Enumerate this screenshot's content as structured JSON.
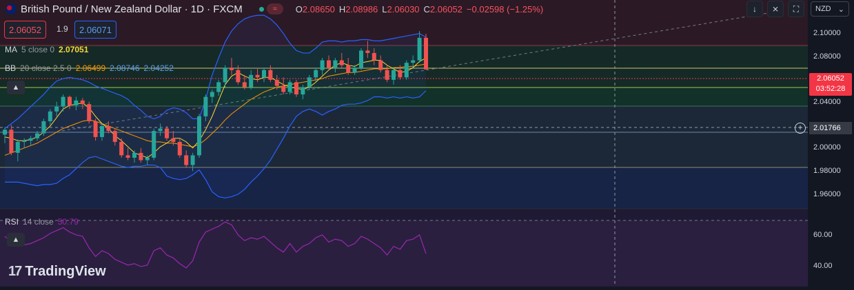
{
  "header": {
    "symbol": "British Pound / New Zealand Dollar · 1D · FXCM",
    "open_label": "O",
    "open": "2.08650",
    "high_label": "H",
    "high": "2.08986",
    "low_label": "L",
    "low": "2.06030",
    "close_label": "C",
    "close": "2.06052",
    "change": "−0.02598 (−1.25%)",
    "wave_icon": "≈"
  },
  "trade": {
    "sell": "2.06052",
    "spread": "1.9",
    "buy": "2.06071"
  },
  "indicators": {
    "ma": {
      "name": "MA",
      "params": "5 close 0",
      "value": "2.07051",
      "color": "#fdd835"
    },
    "bb": {
      "name": "BB",
      "params": "20 close 2.5 0",
      "basis": "2.06499",
      "upper": "2.08746",
      "lower": "2.04252",
      "basis_color": "#ff9800",
      "band_color": "#2962ff"
    },
    "rsi": {
      "name": "RSI",
      "params": "14 close",
      "value": "50.79",
      "color": "#9c27b0"
    }
  },
  "scale": {
    "currency": "NZD",
    "price_ticks": [
      "2.10000",
      "2.08000",
      "2.06052",
      "2.04000",
      "2.01766",
      "2.00000",
      "1.98000",
      "1.96000"
    ],
    "rsi_ticks": [
      "60.00",
      "40.00"
    ],
    "current_price": "2.06052",
    "countdown": "03:52:28",
    "crosshair_price": "2.01766"
  },
  "toolbar": {
    "down_icon": "↓",
    "collapse_icon": "⨯",
    "fullscreen_icon": "⛶",
    "chevron": "⌄"
  },
  "brand": {
    "logo": "17",
    "name": "TradingView"
  },
  "colors": {
    "up": "#26a69a",
    "down": "#ef5350",
    "bg": "#131722"
  },
  "chart_data": {
    "type": "candlestick",
    "price_range": [
      1.945,
      2.113
    ],
    "rsi_range": [
      30,
      75
    ],
    "candles": [
      [
        2.007,
        2.013,
        2.0,
        2.011
      ],
      [
        2.011,
        2.015,
        1.99,
        1.992
      ],
      [
        1.992,
        2.003,
        1.985,
        2.001
      ],
      [
        2.001,
        2.004,
        1.996,
        2.002
      ],
      [
        2.002,
        2.006,
        1.998,
        2.004
      ],
      [
        2.004,
        2.01,
        2.002,
        2.008
      ],
      [
        2.008,
        2.02,
        2.006,
        2.018
      ],
      [
        2.018,
        2.028,
        2.015,
        2.026
      ],
      [
        2.026,
        2.034,
        2.022,
        2.03
      ],
      [
        2.03,
        2.04,
        2.026,
        2.038
      ],
      [
        2.038,
        2.039,
        2.028,
        2.031
      ],
      [
        2.031,
        2.038,
        2.027,
        2.035
      ],
      [
        2.035,
        2.037,
        2.028,
        2.032
      ],
      [
        2.032,
        2.034,
        2.016,
        2.018
      ],
      [
        2.018,
        2.02,
        2.002,
        2.005
      ],
      [
        2.005,
        2.016,
        2.002,
        2.014
      ],
      [
        2.014,
        2.018,
        2.008,
        2.01
      ],
      [
        2.01,
        2.012,
        1.998,
        2.001
      ],
      [
        2.001,
        2.004,
        1.988,
        1.99
      ],
      [
        1.99,
        1.996,
        1.986,
        1.988
      ],
      [
        1.988,
        1.994,
        1.984,
        1.992
      ],
      [
        1.992,
        1.996,
        1.984,
        1.986
      ],
      [
        1.986,
        1.99,
        1.982,
        1.988
      ],
      [
        1.988,
        2.012,
        1.986,
        2.01
      ],
      [
        2.01,
        2.016,
        2.006,
        2.012
      ],
      [
        2.012,
        2.014,
        2.002,
        2.004
      ],
      [
        2.004,
        2.01,
        1.998,
        2.001
      ],
      [
        2.001,
        2.004,
        1.988,
        1.99
      ],
      [
        1.99,
        1.994,
        1.98,
        1.982
      ],
      [
        1.982,
        1.992,
        1.977,
        1.99
      ],
      [
        1.99,
        2.024,
        1.988,
        2.022
      ],
      [
        2.022,
        2.04,
        2.018,
        2.038
      ],
      [
        2.038,
        2.044,
        2.033,
        2.042
      ],
      [
        2.042,
        2.052,
        2.039,
        2.05
      ],
      [
        2.05,
        2.064,
        2.046,
        2.062
      ],
      [
        2.062,
        2.07,
        2.056,
        2.06
      ],
      [
        2.06,
        2.064,
        2.048,
        2.05
      ],
      [
        2.05,
        2.056,
        2.044,
        2.046
      ],
      [
        2.046,
        2.06,
        2.044,
        2.056
      ],
      [
        2.056,
        2.061,
        2.05,
        2.054
      ],
      [
        2.054,
        2.062,
        2.05,
        2.06
      ],
      [
        2.06,
        2.064,
        2.05,
        2.052
      ],
      [
        2.052,
        2.056,
        2.044,
        2.047
      ],
      [
        2.047,
        2.054,
        2.04,
        2.042
      ],
      [
        2.042,
        2.052,
        2.04,
        2.05
      ],
      [
        2.05,
        2.052,
        2.038,
        2.04
      ],
      [
        2.04,
        2.048,
        2.036,
        2.046
      ],
      [
        2.046,
        2.056,
        2.044,
        2.054
      ],
      [
        2.054,
        2.062,
        2.05,
        2.06
      ],
      [
        2.06,
        2.07,
        2.056,
        2.068
      ],
      [
        2.068,
        2.072,
        2.06,
        2.062
      ],
      [
        2.062,
        2.07,
        2.058,
        2.068
      ],
      [
        2.068,
        2.074,
        2.062,
        2.064
      ],
      [
        2.064,
        2.07,
        2.056,
        2.058
      ],
      [
        2.058,
        2.064,
        2.056,
        2.062
      ],
      [
        2.062,
        2.078,
        2.06,
        2.076
      ],
      [
        2.076,
        2.084,
        2.07,
        2.074
      ],
      [
        2.074,
        2.078,
        2.064,
        2.068
      ],
      [
        2.068,
        2.072,
        2.058,
        2.06
      ],
      [
        2.06,
        2.064,
        2.05,
        2.052
      ],
      [
        2.052,
        2.062,
        2.048,
        2.06
      ],
      [
        2.06,
        2.064,
        2.052,
        2.054
      ],
      [
        2.054,
        2.068,
        2.052,
        2.066
      ],
      [
        2.066,
        2.072,
        2.062,
        2.068
      ],
      [
        2.068,
        2.092,
        2.066,
        2.0865
      ],
      [
        2.0865,
        2.0899,
        2.0603,
        2.0605
      ]
    ],
    "ma5": [
      2.005,
      2.004,
      2.002,
      2.002,
      2.003,
      2.005,
      2.009,
      2.014,
      2.021,
      2.028,
      2.031,
      2.032,
      2.033,
      2.029,
      2.022,
      2.016,
      2.012,
      2.006,
      2.002,
      1.997,
      1.992,
      1.99,
      1.988,
      1.992,
      1.997,
      2.0,
      2.004,
      2.004,
      2.001,
      1.996,
      2.002,
      2.011,
      2.022,
      2.035,
      2.048,
      2.055,
      2.058,
      2.055,
      2.053,
      2.052,
      2.054,
      2.054,
      2.051,
      2.048,
      2.046,
      2.045,
      2.044,
      2.046,
      2.05,
      2.055,
      2.06,
      2.064,
      2.066,
      2.064,
      2.063,
      2.066,
      2.067,
      2.068,
      2.068,
      2.064,
      2.061,
      2.058,
      2.059,
      2.062,
      2.067,
      2.07
    ],
    "bb_basis": [
      1.99,
      1.992,
      1.994,
      1.996,
      1.998,
      2.0,
      2.003,
      2.006,
      2.009,
      2.012,
      2.014,
      2.016,
      2.018,
      2.019,
      2.018,
      2.016,
      2.014,
      2.012,
      2.01,
      2.008,
      2.006,
      2.004,
      2.002,
      2.001,
      2.001,
      2.0,
      2.0,
      1.999,
      1.998,
      1.997,
      1.999,
      2.003,
      2.008,
      2.013,
      2.019,
      2.024,
      2.028,
      2.032,
      2.036,
      2.039,
      2.042,
      2.044,
      2.046,
      2.047,
      2.048,
      2.049,
      2.05,
      2.051,
      2.052,
      2.053,
      2.055,
      2.056,
      2.057,
      2.058,
      2.058,
      2.059,
      2.06,
      2.061,
      2.061,
      2.061,
      2.062,
      2.062,
      2.063,
      2.063,
      2.064,
      2.065
    ],
    "bb_upper": [
      2.012,
      2.016,
      2.02,
      2.025,
      2.03,
      2.035,
      2.04,
      2.046,
      2.051,
      2.053,
      2.054,
      2.053,
      2.052,
      2.05,
      2.047,
      2.045,
      2.043,
      2.041,
      2.039,
      2.036,
      2.031,
      2.027,
      2.022,
      2.02,
      2.022,
      2.027,
      2.029,
      2.028,
      2.025,
      2.02,
      2.02,
      2.036,
      2.056,
      2.07,
      2.083,
      2.092,
      2.098,
      2.102,
      2.104,
      2.105,
      2.105,
      2.102,
      2.097,
      2.09,
      2.082,
      2.076,
      2.074,
      2.074,
      2.078,
      2.083,
      2.084,
      2.084,
      2.083,
      2.084,
      2.084,
      2.085,
      2.085,
      2.084,
      2.084,
      2.085,
      2.086,
      2.087,
      2.088,
      2.089,
      2.09,
      2.087
    ],
    "bb_lower": [
      1.968,
      1.968,
      1.968,
      1.967,
      1.966,
      1.965,
      1.966,
      1.966,
      1.967,
      1.971,
      1.974,
      1.979,
      1.984,
      1.988,
      1.989,
      1.987,
      1.985,
      1.983,
      1.981,
      1.98,
      1.981,
      1.981,
      1.982,
      1.982,
      1.98,
      1.973,
      1.971,
      1.97,
      1.971,
      1.974,
      1.978,
      1.97,
      1.96,
      1.956,
      1.955,
      1.956,
      1.958,
      1.962,
      1.968,
      1.973,
      1.979,
      1.986,
      1.995,
      2.004,
      2.014,
      2.022,
      2.026,
      2.028,
      2.026,
      2.023,
      2.026,
      2.028,
      2.031,
      2.032,
      2.032,
      2.033,
      2.035,
      2.038,
      2.038,
      2.037,
      2.038,
      2.037,
      2.038,
      2.037,
      2.038,
      2.043
    ],
    "rsi": [
      63,
      59,
      56,
      57,
      58,
      60,
      62,
      65,
      67,
      69,
      66,
      64,
      63,
      55,
      49,
      53,
      51,
      47,
      45,
      43,
      44,
      42,
      43,
      53,
      55,
      50,
      48,
      44,
      41,
      46,
      59,
      66,
      68,
      70,
      73,
      71,
      64,
      60,
      62,
      61,
      63,
      59,
      55,
      52,
      58,
      52,
      56,
      58,
      62,
      64,
      59,
      61,
      60,
      56,
      58,
      63,
      61,
      58,
      55,
      50,
      56,
      54,
      60,
      61,
      64,
      51
    ]
  }
}
